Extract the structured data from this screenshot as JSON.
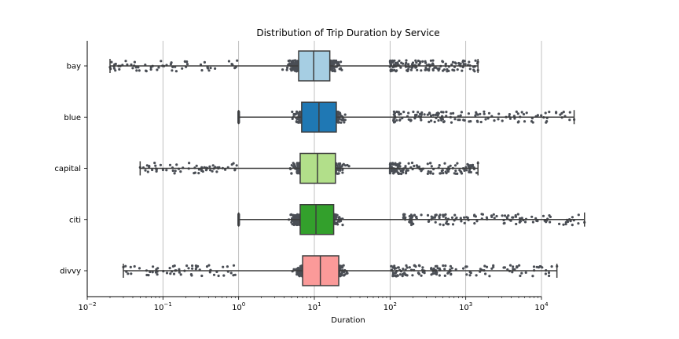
{
  "chart_data": {
    "type": "box",
    "title": "Distribution of Trip Duration by Service",
    "xlabel": "Duration",
    "ylabel": "",
    "x_scale": "log",
    "xlim": [
      0.01,
      10000
    ],
    "x_ticks": [
      {
        "value": 0.01,
        "base": "10",
        "exp": "−2"
      },
      {
        "value": 0.1,
        "base": "10",
        "exp": "−1"
      },
      {
        "value": 1,
        "base": "10",
        "exp": "0"
      },
      {
        "value": 10,
        "base": "10",
        "exp": "1"
      },
      {
        "value": 100,
        "base": "10",
        "exp": "2"
      },
      {
        "value": 1000,
        "base": "10",
        "exp": "3"
      },
      {
        "value": 10000,
        "base": "10",
        "exp": "4"
      }
    ],
    "grid": "vertical",
    "categories": [
      "bay",
      "blue",
      "capital",
      "citi",
      "divvy"
    ],
    "series": [
      {
        "category": "bay",
        "color": "#a6cee3",
        "whisker_low": 0.02,
        "q1": 6.2,
        "median": 9.8,
        "q3": 16,
        "whisker_high": 1450,
        "strip_min": 0.02,
        "strip_max": 1450,
        "dense_low": 1.0,
        "dense_high": 100
      },
      {
        "category": "blue",
        "color": "#1f78b4",
        "whisker_low": 1.0,
        "q1": 6.8,
        "median": 11.5,
        "q3": 19.5,
        "whisker_high": 27000,
        "strip_min": 1.0,
        "strip_max": 27000,
        "dense_low": 1.0,
        "dense_high": 110
      },
      {
        "category": "capital",
        "color": "#b2df8a",
        "whisker_low": 0.05,
        "q1": 6.5,
        "median": 11,
        "q3": 19,
        "whisker_high": 1450,
        "strip_min": 0.05,
        "strip_max": 1450,
        "dense_low": 1.0,
        "dense_high": 100
      },
      {
        "category": "citi",
        "color": "#33a02c",
        "whisker_low": 1.0,
        "q1": 6.5,
        "median": 10.5,
        "q3": 18,
        "whisker_high": 37000,
        "strip_min": 1.0,
        "strip_max": 37000,
        "dense_low": 1.0,
        "dense_high": 150
      },
      {
        "category": "divvy",
        "color": "#fb9a99",
        "whisker_low": 0.03,
        "q1": 7,
        "median": 12,
        "q3": 21,
        "whisker_high": 16000,
        "strip_min": 0.03,
        "strip_max": 16000,
        "dense_low": 1.0,
        "dense_high": 100
      }
    ],
    "point_color": "#4a4e55",
    "box_edge_color": "#3d3d3d"
  }
}
